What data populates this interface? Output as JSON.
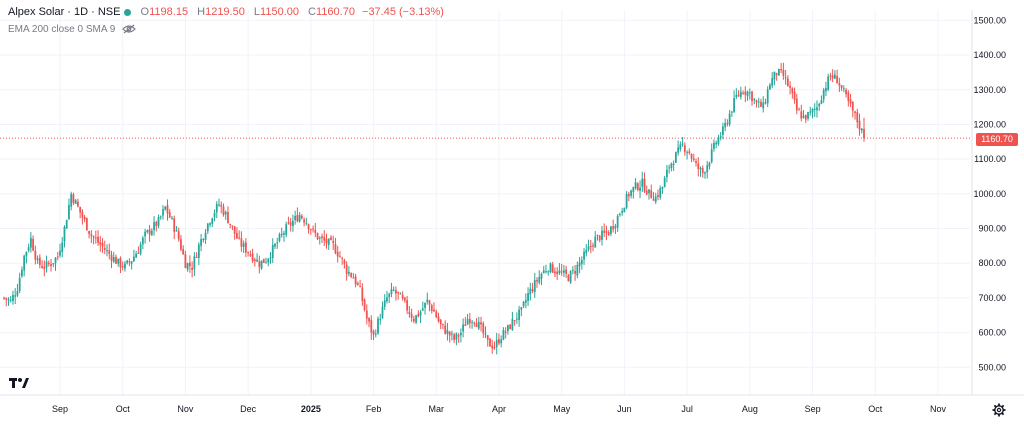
{
  "legend": {
    "symbol": "Alpex Solar · 1D · NSE",
    "o_label": "O",
    "o_value": "1198.15",
    "h_label": "H",
    "h_value": "1219.50",
    "l_label": "L",
    "l_value": "1150.00",
    "c_label": "C",
    "c_value": "1160.70",
    "change": "−37.45 (−3.13%)"
  },
  "indicator": {
    "label": "EMA 200 close 0 SMA 9"
  },
  "price_label": "1160.70",
  "colors": {
    "up": "#26a69a",
    "down": "#ef5350",
    "grid": "#f0f3fa",
    "text": "#131722"
  },
  "chart_data": {
    "type": "candlestick",
    "last_price": 1160.7,
    "ylim": [
      420,
      1530
    ],
    "y_ticks": [
      "1500.00",
      "1400.00",
      "1300.00",
      "1200.00",
      "1100.00",
      "1000.00",
      "900.00",
      "800.00",
      "700.00",
      "600.00",
      "500.00"
    ],
    "x_ticks": [
      "Sep",
      "Oct",
      "Nov",
      "Dec",
      "2025",
      "Feb",
      "Mar",
      "Apr",
      "May",
      "Jun",
      "Jul",
      "Aug",
      "Sep",
      "Oct",
      "Nov"
    ],
    "close_path": [
      [
        0,
        700
      ],
      [
        3,
        690
      ],
      [
        6,
        730
      ],
      [
        9,
        820
      ],
      [
        12,
        870
      ],
      [
        15,
        800
      ],
      [
        18,
        790
      ],
      [
        21,
        800
      ],
      [
        24,
        820
      ],
      [
        27,
        900
      ],
      [
        30,
        1000
      ],
      [
        33,
        960
      ],
      [
        36,
        920
      ],
      [
        39,
        880
      ],
      [
        42,
        860
      ],
      [
        45,
        840
      ],
      [
        48,
        820
      ],
      [
        51,
        800
      ],
      [
        54,
        790
      ],
      [
        57,
        810
      ],
      [
        60,
        840
      ],
      [
        63,
        880
      ],
      [
        66,
        900
      ],
      [
        69,
        920
      ],
      [
        72,
        960
      ],
      [
        75,
        920
      ],
      [
        78,
        870
      ],
      [
        81,
        800
      ],
      [
        84,
        790
      ],
      [
        87,
        850
      ],
      [
        90,
        900
      ],
      [
        93,
        940
      ],
      [
        96,
        970
      ],
      [
        99,
        940
      ],
      [
        102,
        900
      ],
      [
        105,
        860
      ],
      [
        108,
        840
      ],
      [
        111,
        820
      ],
      [
        114,
        800
      ],
      [
        117,
        810
      ],
      [
        120,
        840
      ],
      [
        123,
        870
      ],
      [
        126,
        900
      ],
      [
        129,
        920
      ],
      [
        132,
        940
      ],
      [
        135,
        920
      ],
      [
        138,
        890
      ],
      [
        141,
        870
      ],
      [
        144,
        860
      ],
      [
        147,
        850
      ],
      [
        150,
        820
      ],
      [
        153,
        780
      ],
      [
        156,
        760
      ],
      [
        159,
        720
      ],
      [
        162,
        640
      ],
      [
        165,
        590
      ],
      [
        168,
        650
      ],
      [
        171,
        700
      ],
      [
        174,
        720
      ],
      [
        177,
        700
      ],
      [
        180,
        670
      ],
      [
        183,
        640
      ],
      [
        186,
        660
      ],
      [
        189,
        690
      ],
      [
        192,
        660
      ],
      [
        195,
        620
      ],
      [
        198,
        600
      ],
      [
        201,
        580
      ],
      [
        204,
        600
      ],
      [
        207,
        640
      ],
      [
        210,
        640
      ],
      [
        213,
        610
      ],
      [
        216,
        570
      ],
      [
        219,
        560
      ],
      [
        222,
        590
      ],
      [
        225,
        610
      ],
      [
        228,
        640
      ],
      [
        231,
        660
      ],
      [
        234,
        710
      ],
      [
        237,
        740
      ],
      [
        240,
        770
      ],
      [
        243,
        790
      ],
      [
        246,
        780
      ],
      [
        249,
        770
      ],
      [
        252,
        760
      ],
      [
        255,
        780
      ],
      [
        258,
        810
      ],
      [
        261,
        840
      ],
      [
        264,
        870
      ],
      [
        267,
        880
      ],
      [
        270,
        890
      ],
      [
        273,
        920
      ],
      [
        276,
        960
      ],
      [
        279,
        1000
      ],
      [
        282,
        1020
      ],
      [
        285,
        1030
      ],
      [
        288,
        1000
      ],
      [
        291,
        990
      ],
      [
        294,
        1020
      ],
      [
        297,
        1080
      ],
      [
        300,
        1110
      ],
      [
        303,
        1140
      ],
      [
        306,
        1120
      ],
      [
        309,
        1080
      ],
      [
        312,
        1060
      ],
      [
        315,
        1100
      ],
      [
        318,
        1150
      ],
      [
        321,
        1180
      ],
      [
        324,
        1230
      ],
      [
        327,
        1280
      ],
      [
        330,
        1300
      ],
      [
        333,
        1290
      ],
      [
        336,
        1260
      ],
      [
        339,
        1250
      ],
      [
        342,
        1320
      ],
      [
        345,
        1350
      ],
      [
        348,
        1340
      ],
      [
        351,
        1300
      ],
      [
        354,
        1240
      ],
      [
        357,
        1220
      ],
      [
        360,
        1230
      ],
      [
        363,
        1250
      ],
      [
        366,
        1300
      ],
      [
        369,
        1340
      ],
      [
        372,
        1330
      ],
      [
        375,
        1290
      ],
      [
        378,
        1250
      ],
      [
        381,
        1210
      ],
      [
        384,
        1165
      ]
    ]
  },
  "toolbar": {
    "settings_label": ""
  }
}
